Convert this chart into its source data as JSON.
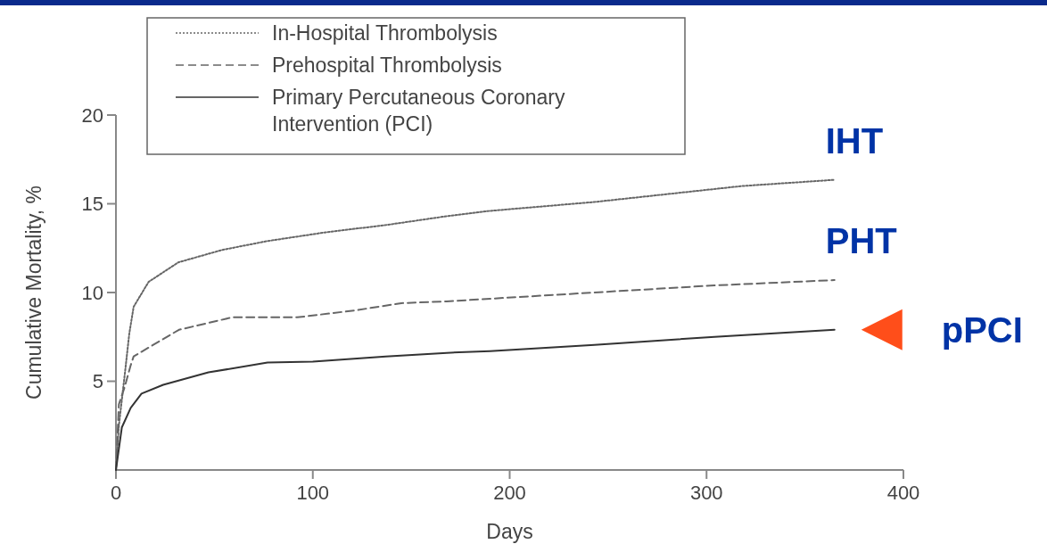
{
  "chart_data": {
    "type": "line",
    "xlabel": "Days",
    "ylabel": "Cumulative Mortality, %",
    "xlim": [
      0,
      400
    ],
    "ylim": [
      0,
      20
    ],
    "xticks": [
      0,
      100,
      200,
      300,
      400
    ],
    "yticks": [
      5,
      10,
      15,
      20
    ],
    "legend": "top left",
    "grid": false,
    "series": [
      {
        "name": "In-Hospital Thrombolysis",
        "color": "#666666",
        "line_style": "dotted",
        "x": [
          0,
          1.5,
          4.5,
          6.8,
          9,
          16.6,
          31.7,
          54,
          77,
          107,
          137,
          168,
          190,
          243,
          318,
          365
        ],
        "values": [
          0,
          2.5,
          5.4,
          7.7,
          9.2,
          10.6,
          11.7,
          12.4,
          12.9,
          13.4,
          13.8,
          14.3,
          14.6,
          15.1,
          16.0,
          16.35
        ]
      },
      {
        "name": "Prehospital Thrombolysis",
        "color": "#666666",
        "line_style": "dashed",
        "x": [
          0,
          1.5,
          4.5,
          7.5,
          9,
          32,
          59,
          92,
          122,
          145,
          168,
          190,
          243,
          304,
          365
        ],
        "values": [
          0,
          3.7,
          4.7,
          5.9,
          6.4,
          7.9,
          8.6,
          8.6,
          9.0,
          9.4,
          9.5,
          9.65,
          10.0,
          10.4,
          10.7
        ]
      },
      {
        "name": "Primary Percutaneous Coronary Intervention (PCI)",
        "color": "#333333",
        "line_style": "solid",
        "x": [
          0,
          1.5,
          3,
          7.5,
          13,
          24,
          47,
          77,
          100,
          137,
          168,
          190,
          243,
          304,
          365
        ],
        "values": [
          0,
          1.2,
          2.4,
          3.5,
          4.3,
          4.8,
          5.5,
          6.05,
          6.1,
          6.4,
          6.6,
          6.7,
          7.05,
          7.5,
          7.9
        ]
      }
    ],
    "annotations": [
      "IHT",
      "PHT",
      "pPCI"
    ]
  }
}
